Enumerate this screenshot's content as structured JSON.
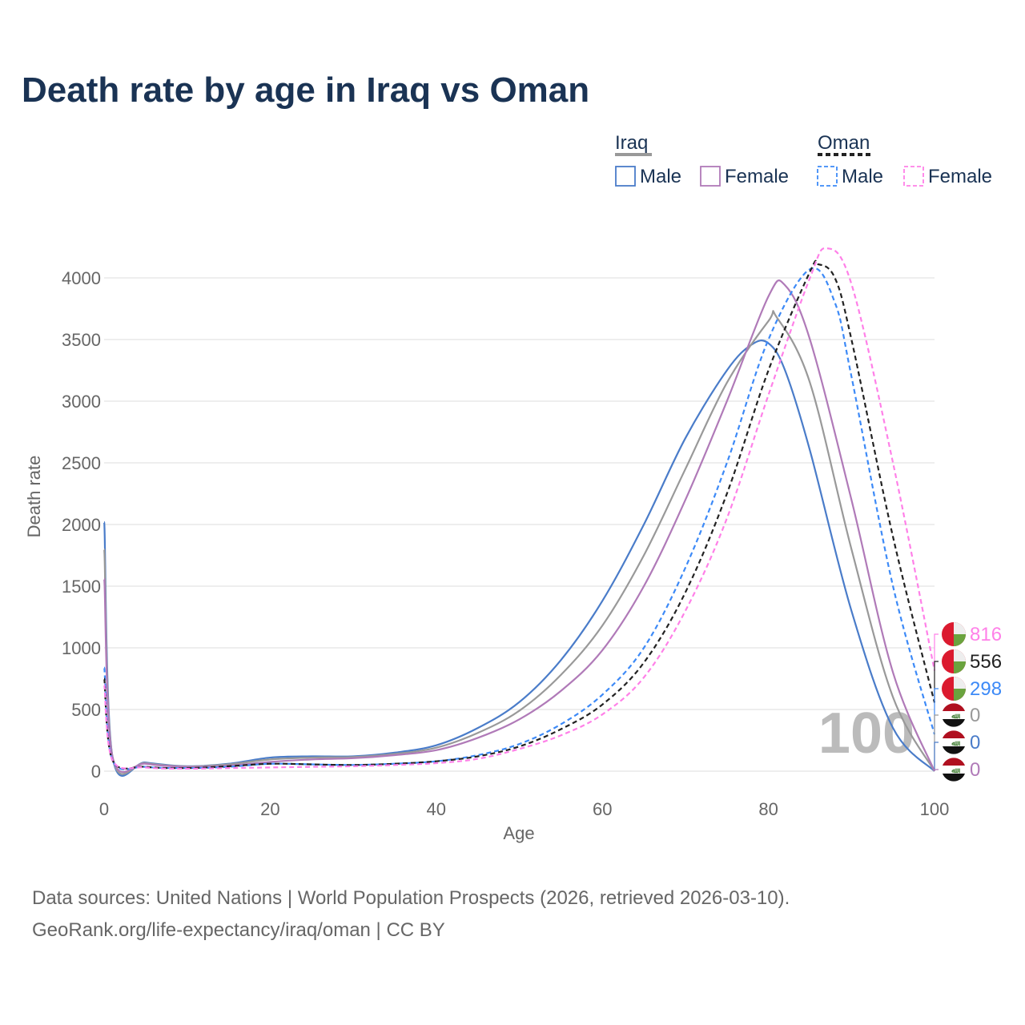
{
  "title": "Death rate by age in Iraq vs Oman",
  "source_line1": "Data sources: United Nations | World Population Prospects (2026, retrieved 2026-03-10).",
  "source_line2": "GeoRank.org/life-expectancy/iraq/oman | CC BY",
  "chart_data": {
    "type": "line",
    "title": "Death rate by age in Iraq vs Oman",
    "xlabel": "Age",
    "ylabel": "Death rate",
    "xlim": [
      0,
      100
    ],
    "ylim": [
      0,
      4300
    ],
    "xticks": [
      0,
      20,
      40,
      60,
      80,
      100
    ],
    "yticks": [
      0,
      500,
      1000,
      1500,
      2000,
      2500,
      3000,
      3500,
      4000
    ],
    "grid": true,
    "watermark": "100",
    "legend": {
      "groups": [
        {
          "label": "Iraq",
          "items": [
            "Male",
            "Female"
          ]
        },
        {
          "label": "Oman",
          "items": [
            "Male",
            "Female"
          ]
        }
      ],
      "placement": "top-right"
    },
    "series": [
      {
        "name": "Iraq Male",
        "color": "#4a7cc9",
        "dash": false,
        "end_label": "0",
        "x": [
          0,
          1,
          5,
          10,
          15,
          20,
          25,
          30,
          35,
          40,
          45,
          50,
          55,
          60,
          65,
          70,
          75,
          78,
          80,
          82,
          85,
          90,
          95,
          100
        ],
        "y": [
          2020,
          120,
          70,
          40,
          60,
          110,
          120,
          120,
          150,
          210,
          350,
          560,
          900,
          1380,
          2000,
          2700,
          3250,
          3460,
          3470,
          3250,
          2600,
          1300,
          350,
          0
        ]
      },
      {
        "name": "Iraq Total",
        "color": "#999999",
        "dash": false,
        "end_label": "0",
        "x": [
          0,
          1,
          5,
          10,
          15,
          20,
          25,
          30,
          35,
          40,
          45,
          50,
          55,
          60,
          65,
          70,
          75,
          80,
          81,
          85,
          90,
          95,
          100
        ],
        "y": [
          1800,
          120,
          65,
          38,
          55,
          95,
          110,
          115,
          140,
          190,
          310,
          490,
          780,
          1180,
          1750,
          2450,
          3150,
          3650,
          3680,
          3150,
          1800,
          600,
          0
        ]
      },
      {
        "name": "Iraq Female",
        "color": "#b07ab8",
        "dash": false,
        "end_label": "0",
        "x": [
          0,
          1,
          5,
          10,
          15,
          20,
          25,
          30,
          35,
          40,
          45,
          50,
          55,
          60,
          65,
          70,
          75,
          80,
          82,
          85,
          90,
          95,
          100
        ],
        "y": [
          1560,
          120,
          60,
          35,
          45,
          75,
          95,
          105,
          130,
          170,
          270,
          420,
          650,
          980,
          1500,
          2200,
          3000,
          3850,
          3940,
          3500,
          2200,
          800,
          0
        ]
      },
      {
        "name": "Oman Male",
        "color": "#3d8af7",
        "dash": true,
        "end_label": "298",
        "x": [
          0,
          1,
          5,
          10,
          15,
          20,
          25,
          30,
          35,
          40,
          45,
          50,
          55,
          60,
          65,
          70,
          75,
          80,
          85,
          88,
          90,
          95,
          100
        ],
        "y": [
          840,
          90,
          35,
          25,
          35,
          60,
          55,
          50,
          60,
          80,
          130,
          220,
          380,
          620,
          1000,
          1650,
          2500,
          3500,
          4070,
          3800,
          3200,
          1500,
          298
        ]
      },
      {
        "name": "Oman Total",
        "color": "#222222",
        "dash": true,
        "end_label": "556",
        "x": [
          0,
          1,
          5,
          10,
          15,
          20,
          25,
          30,
          35,
          40,
          45,
          50,
          55,
          60,
          65,
          70,
          75,
          80,
          85,
          86,
          88,
          90,
          95,
          100
        ],
        "y": [
          750,
          90,
          35,
          25,
          40,
          60,
          55,
          50,
          60,
          80,
          120,
          200,
          340,
          540,
          880,
          1450,
          2250,
          3250,
          4050,
          4110,
          4000,
          3500,
          1900,
          556
        ]
      },
      {
        "name": "Oman Female",
        "color": "#ff80e8",
        "dash": true,
        "end_label": "816",
        "x": [
          0,
          1,
          5,
          10,
          15,
          20,
          25,
          30,
          35,
          40,
          45,
          50,
          55,
          60,
          65,
          70,
          75,
          80,
          85,
          87,
          90,
          95,
          100
        ],
        "y": [
          700,
          90,
          30,
          20,
          25,
          30,
          35,
          40,
          50,
          65,
          100,
          180,
          290,
          460,
          760,
          1300,
          2050,
          3050,
          4000,
          4240,
          3950,
          2500,
          816
        ]
      }
    ]
  }
}
